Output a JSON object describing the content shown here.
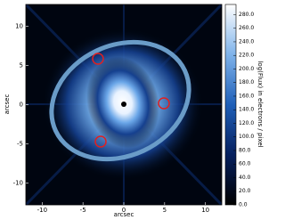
{
  "chart_data": {
    "type": "image",
    "xlabel": "arcsec",
    "ylabel": "arcsec",
    "xlim": [
      -12,
      12
    ],
    "ylim": [
      -12.8,
      12.8
    ],
    "xticks": [
      -10,
      -5,
      0,
      5,
      10
    ],
    "yticks": [
      -10,
      -5,
      0,
      5,
      10
    ],
    "colorbar": {
      "label": "log(Flux) in electrons / pixel",
      "lim": [
        0,
        295
      ],
      "colors": [
        "#000000",
        "#06205e",
        "#1f5fb8",
        "#7fb3ea",
        "#ffffff"
      ],
      "ticks": [
        {
          "value": 0,
          "label": "0.0"
        },
        {
          "value": 20,
          "label": "20.0"
        },
        {
          "value": 40,
          "label": "40.0"
        },
        {
          "value": 60,
          "label": "60.0"
        },
        {
          "value": 80,
          "label": "80.0"
        },
        {
          "value": 100,
          "label": "100.0"
        },
        {
          "value": 120,
          "label": "120.0"
        },
        {
          "value": 140,
          "label": "140.0"
        },
        {
          "value": 160,
          "label": "160.0"
        },
        {
          "value": 180,
          "label": "180.0"
        },
        {
          "value": 200,
          "label": "200.0"
        },
        {
          "value": 220,
          "label": "220.0"
        },
        {
          "value": 240,
          "label": "240.0"
        },
        {
          "value": 260,
          "label": "260.0"
        },
        {
          "value": 280,
          "label": "280.0"
        }
      ]
    }
  }
}
